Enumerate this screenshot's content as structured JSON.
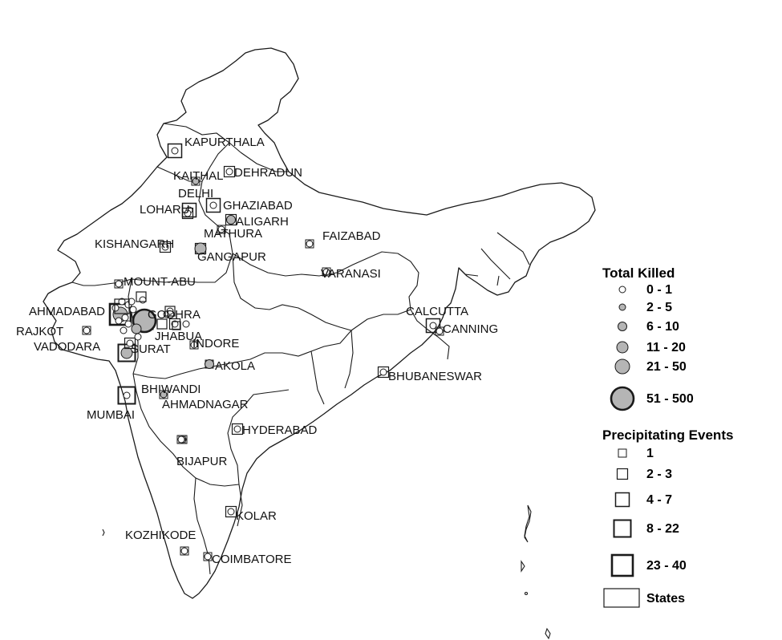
{
  "cities": [
    {
      "name": "KAPURTHALA",
      "killed": "0 - 1",
      "events": "4 - 7"
    },
    {
      "name": "DEHRADUN",
      "killed": "0 - 1",
      "events": "2 - 3"
    },
    {
      "name": "KAITHAL",
      "killed": "2 - 5",
      "events": "1"
    },
    {
      "name": "DELHI",
      "killed": "0 - 1",
      "events": "4 - 7"
    },
    {
      "name": "GHAZIABAD",
      "killed": "0 - 1",
      "events": "4 - 7"
    },
    {
      "name": "LOHARU",
      "killed": "0 - 1",
      "events": "2 - 3"
    },
    {
      "name": "ALIGARH",
      "killed": "6 - 10",
      "events": "2 - 3"
    },
    {
      "name": "MATHURA",
      "killed": "0 - 1",
      "events": "1"
    },
    {
      "name": "FAIZABAD",
      "killed": "0 - 1",
      "events": "1"
    },
    {
      "name": "KISHANGARH",
      "killed": "0 - 1",
      "events": "2 - 3"
    },
    {
      "name": "GANGAPUR",
      "killed": "11 - 20",
      "events": "2 - 3"
    },
    {
      "name": "VARANASI",
      "killed": "0 - 1",
      "events": "1"
    },
    {
      "name": "MOUNT-ABU",
      "killed": "0 - 1",
      "events": "1"
    },
    {
      "name": "AHMADABAD",
      "killed": "21 - 50",
      "events": "23 - 40"
    },
    {
      "name": "GODHRA",
      "killed": "51 - 500",
      "events": "8 - 22"
    },
    {
      "name": "RAJKOT",
      "killed": "0 - 1",
      "events": "1"
    },
    {
      "name": "JHABUA",
      "killed": "0 - 1",
      "events": "2 - 3"
    },
    {
      "name": "VADODARA",
      "killed": "11 - 20",
      "events": "8 - 22"
    },
    {
      "name": "SURAT",
      "killed": "0 - 1",
      "events": "2 - 3"
    },
    {
      "name": "INDORE",
      "killed": "0 - 1",
      "events": "1"
    },
    {
      "name": "AKOLA",
      "killed": "6 - 10",
      "events": "1"
    },
    {
      "name": "CALCUTTA",
      "killed": "0 - 1",
      "events": "4 - 7"
    },
    {
      "name": "CANNING",
      "killed": "0 - 1",
      "events": "1"
    },
    {
      "name": "BHUBANESWAR",
      "killed": "0 - 1",
      "events": "2 - 3"
    },
    {
      "name": "BHIWANDI",
      "killed": "2 - 5",
      "events": "1"
    },
    {
      "name": "MUMBAI",
      "killed": "0 - 1",
      "events": "8 - 22"
    },
    {
      "name": "AHMADNAGAR",
      "killed": "0 - 1",
      "events": "1"
    },
    {
      "name": "HYDERABAD",
      "killed": "0 - 1",
      "events": "2 - 3"
    },
    {
      "name": "BIJAPUR",
      "killed": "0 - 1",
      "events": "1"
    },
    {
      "name": "KOLAR",
      "killed": "0 - 1",
      "events": "2 - 3"
    },
    {
      "name": "KOZHIKODE",
      "killed": "0 - 1",
      "events": "1"
    },
    {
      "name": "COIMBATORE",
      "killed": "0 - 1",
      "events": "1"
    }
  ],
  "legend": {
    "killed_title": "Total Killed",
    "killed_classes": [
      "0 - 1",
      "2 - 5",
      "6 - 10",
      "11 - 20",
      "21 - 50",
      "51 - 500"
    ],
    "events_title": "Precipitating Events",
    "events_classes": [
      "1",
      "2 - 3",
      "4 - 7",
      "8 - 22",
      "23 - 40"
    ],
    "states_label": "States"
  },
  "colors": {
    "outline": "#1a1a1a",
    "circle_fill": "#b5b5b5",
    "small_circle_fill": "#ffffff",
    "background": "#ffffff"
  }
}
